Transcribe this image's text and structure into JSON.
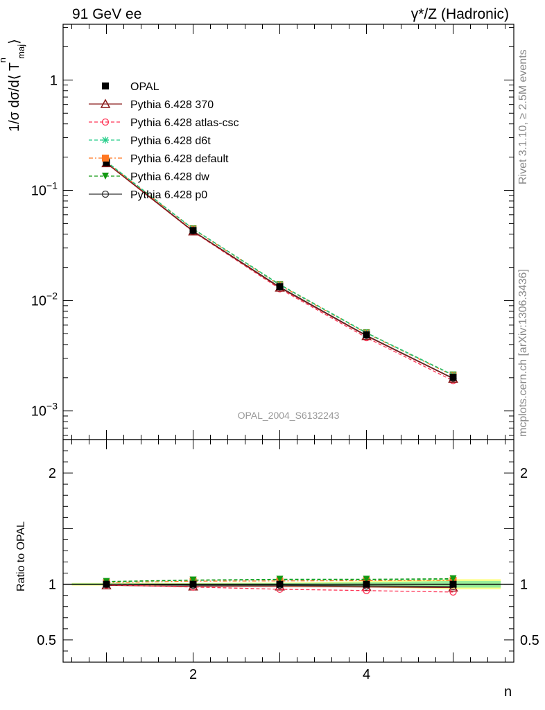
{
  "header": {
    "left": "91 GeV ee",
    "right": "γ*/Z (Hadronic)"
  },
  "side_labels": {
    "rivet": "Rivet 3.1.10, ≥ 2.5M events",
    "mcplots": "mcplots.cern.ch [arXiv:1306.3436]"
  },
  "watermark": "OPAL_2004_S6132243",
  "chart_data": [
    {
      "type": "line",
      "panel": "main",
      "ylabel": "1/σ dσ/d⟨ T",
      "ylabel_sup": "n",
      "ylabel_sub": "maj",
      "ylabel_end": "⟩",
      "yscale": "log",
      "ylim": [
        0.00055,
        3.2
      ],
      "xlim": [
        0.5,
        5.7
      ],
      "y_ticks": [
        {
          "value": 1,
          "label": "1"
        },
        {
          "value": 0.1,
          "label": "10",
          "exp": "−1"
        },
        {
          "value": 0.01,
          "label": "10",
          "exp": "−2"
        },
        {
          "value": 0.001,
          "label": "10",
          "exp": "−3"
        }
      ],
      "x": [
        1,
        2,
        3,
        4,
        5
      ],
      "series": [
        {
          "name": "OPAL",
          "kind": "data",
          "color": "#000000",
          "marker": "square-filled",
          "dash": "none",
          "values": [
            0.178,
            0.0432,
            0.0134,
            0.0049,
            0.00202
          ]
        },
        {
          "name": "Pythia 6.428 370",
          "kind": "mc",
          "color": "#8b1a1a",
          "marker": "triangle-open",
          "dash": "solid",
          "values": [
            0.176,
            0.0424,
            0.0131,
            0.00478,
            0.00196
          ]
        },
        {
          "name": "Pythia 6.428 atlas-csc",
          "kind": "mc",
          "color": "#ff3355",
          "marker": "circle-open",
          "dash": "dashed",
          "values": [
            0.177,
            0.0422,
            0.0128,
            0.00462,
            0.00188
          ]
        },
        {
          "name": "Pythia 6.428 d6t",
          "kind": "mc",
          "color": "#22cc88",
          "marker": "star",
          "dash": "dashed",
          "values": [
            0.181,
            0.0447,
            0.0139,
            0.00509,
            0.00211
          ]
        },
        {
          "name": "Pythia 6.428 default",
          "kind": "mc",
          "color": "#ff7722",
          "marker": "square-filled",
          "dash": "dashdot",
          "values": [
            0.18,
            0.0444,
            0.0138,
            0.00506,
            0.00209
          ]
        },
        {
          "name": "Pythia 6.428 dw",
          "kind": "mc",
          "color": "#119911",
          "marker": "triangle-down-filled",
          "dash": "dashed",
          "values": [
            0.182,
            0.0448,
            0.014,
            0.00512,
            0.00212
          ]
        },
        {
          "name": "Pythia 6.428 p0",
          "kind": "mc",
          "color": "#333333",
          "marker": "circle-open",
          "dash": "solid",
          "values": [
            0.178,
            0.0428,
            0.0133,
            0.00484,
            0.00198
          ]
        }
      ],
      "legend": "top-left"
    },
    {
      "type": "line",
      "panel": "ratio",
      "ylabel": "Ratio to OPAL",
      "xlabel": "n",
      "ylim": [
        0.3,
        2.3
      ],
      "xlim": [
        0.5,
        5.7
      ],
      "x_ticks": [
        {
          "value": 2,
          "label": "2"
        },
        {
          "value": 4,
          "label": "4"
        }
      ],
      "y_ticks": [
        {
          "value": 2,
          "label": "2"
        },
        {
          "value": 1,
          "label": "1"
        },
        {
          "value": 0.5,
          "label": "0.5"
        }
      ],
      "band": {
        "x": [
          0.6,
          5.55
        ],
        "yellow_halfwidth": [
          0.012,
          0.012,
          0.016,
          0.028,
          0.045
        ],
        "green_halfwidth": [
          0.008,
          0.008,
          0.01,
          0.018,
          0.03
        ]
      },
      "x": [
        1,
        2,
        3,
        4,
        5
      ],
      "series": [
        {
          "name": "Pythia 6.428 370",
          "color": "#8b1a1a",
          "marker": "triangle-open",
          "dash": "solid",
          "values": [
            0.99,
            0.98,
            0.98,
            0.975,
            0.97
          ]
        },
        {
          "name": "Pythia 6.428 atlas-csc",
          "color": "#ff3355",
          "marker": "circle-open",
          "dash": "dashed",
          "values": [
            0.995,
            0.975,
            0.955,
            0.943,
            0.93
          ]
        },
        {
          "name": "Pythia 6.428 d6t",
          "color": "#22cc88",
          "marker": "star",
          "dash": "dashed",
          "values": [
            1.02,
            1.035,
            1.04,
            1.04,
            1.045
          ]
        },
        {
          "name": "Pythia 6.428 default",
          "color": "#ff7722",
          "marker": "square-filled",
          "dash": "dashdot",
          "values": [
            1.015,
            1.028,
            1.03,
            1.033,
            1.035
          ]
        },
        {
          "name": "Pythia 6.428 dw",
          "color": "#119911",
          "marker": "triangle-down-filled",
          "dash": "dashed",
          "values": [
            1.025,
            1.038,
            1.045,
            1.045,
            1.05
          ]
        },
        {
          "name": "Pythia 6.428 p0",
          "color": "#333333",
          "marker": "circle-open",
          "dash": "solid",
          "values": [
            1.0,
            0.99,
            0.99,
            0.985,
            0.98
          ]
        }
      ]
    }
  ]
}
